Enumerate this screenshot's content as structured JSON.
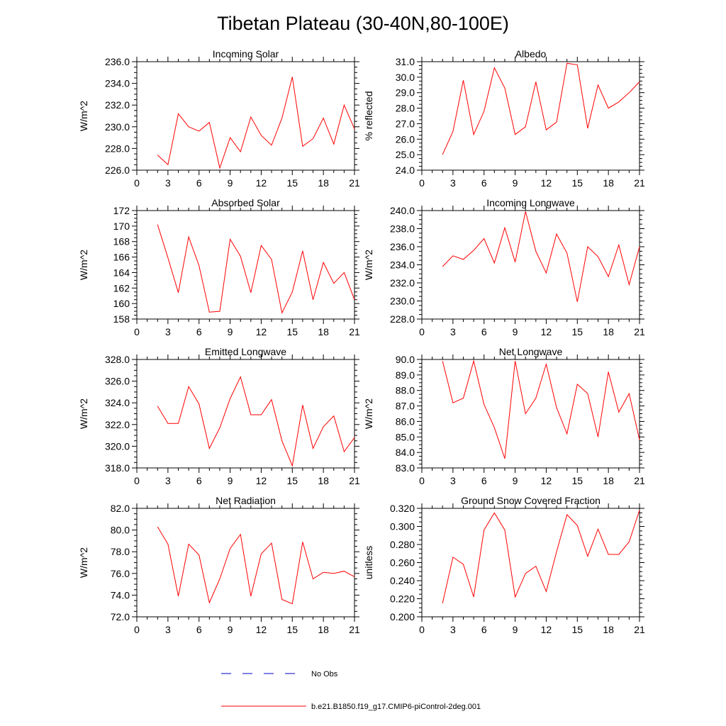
{
  "title": "Tibetan Plateau (30-40N,80-100E)",
  "colors": {
    "model_line": "#ff0000",
    "obs_line": "#0000cc",
    "axis": "#000000"
  },
  "legend": {
    "obs_label": "No Obs",
    "model_label": "b.e21.B1850.f19_g17.CMIP6-piControl-2deg.001"
  },
  "chart_data": [
    {
      "type": "line",
      "title": "Incoming Solar",
      "ylabel": "W/m^2",
      "xlim": [
        0,
        21
      ],
      "ylim": [
        226,
        236
      ],
      "xticks": [
        0,
        3,
        6,
        9,
        12,
        15,
        18,
        21
      ],
      "yticks": [
        "226.0",
        "228.0",
        "230.0",
        "232.0",
        "234.0",
        "236.0"
      ],
      "x": [
        2,
        3,
        4,
        5,
        6,
        7,
        8,
        9,
        10,
        11,
        12,
        13,
        14,
        15,
        16,
        17,
        18,
        19,
        20,
        21
      ],
      "series": [
        {
          "name": "b.e21.B1850.f19_g17.CMIP6-piControl-2deg.001",
          "values": [
            227.4,
            226.5,
            231.2,
            230.0,
            229.6,
            230.4,
            226.2,
            229.0,
            227.7,
            230.9,
            229.2,
            228.3,
            230.8,
            234.6,
            228.2,
            228.9,
            230.8,
            228.4,
            232.0,
            229.8
          ]
        }
      ]
    },
    {
      "type": "line",
      "title": "Albedo",
      "ylabel": "% reflected",
      "xlim": [
        0,
        21
      ],
      "ylim": [
        24,
        31
      ],
      "xticks": [
        0,
        3,
        6,
        9,
        12,
        15,
        18,
        21
      ],
      "yticks": [
        "24.0",
        "25.0",
        "26.0",
        "27.0",
        "28.0",
        "29.0",
        "30.0",
        "31.0"
      ],
      "x": [
        2,
        3,
        4,
        5,
        6,
        7,
        8,
        9,
        10,
        11,
        12,
        13,
        14,
        15,
        16,
        17,
        18,
        19,
        20,
        21
      ],
      "series": [
        {
          "name": "b.e21.B1850.f19_g17.CMIP6-piControl-2deg.001",
          "values": [
            25.0,
            26.5,
            29.8,
            26.3,
            27.8,
            30.6,
            29.3,
            26.3,
            26.8,
            29.7,
            26.6,
            27.1,
            30.9,
            30.8,
            26.7,
            29.5,
            28.0,
            28.4,
            29.0,
            29.7
          ]
        }
      ]
    },
    {
      "type": "line",
      "title": "Absorbed Solar",
      "ylabel": "W/m^2",
      "xlim": [
        0,
        21
      ],
      "ylim": [
        158,
        172
      ],
      "xticks": [
        0,
        3,
        6,
        9,
        12,
        15,
        18,
        21
      ],
      "yticks": [
        "158",
        "160",
        "162",
        "164",
        "166",
        "168",
        "170",
        "172"
      ],
      "x": [
        2,
        3,
        4,
        5,
        6,
        7,
        8,
        9,
        10,
        11,
        12,
        13,
        14,
        15,
        16,
        17,
        18,
        19,
        20,
        21
      ],
      "series": [
        {
          "name": "b.e21.B1850.f19_g17.CMIP6-piControl-2deg.001",
          "values": [
            170.2,
            165.9,
            161.4,
            168.6,
            164.9,
            158.9,
            159.0,
            168.3,
            166.1,
            161.4,
            167.5,
            165.7,
            158.8,
            161.5,
            166.8,
            160.5,
            165.3,
            162.6,
            164.0,
            160.5
          ]
        }
      ]
    },
    {
      "type": "line",
      "title": "Incoming Longwave",
      "ylabel": "W/m^2",
      "xlim": [
        0,
        21
      ],
      "ylim": [
        228,
        240
      ],
      "xticks": [
        0,
        3,
        6,
        9,
        12,
        15,
        18,
        21
      ],
      "yticks": [
        "228.0",
        "230.0",
        "232.0",
        "234.0",
        "236.0",
        "238.0",
        "240.0"
      ],
      "x": [
        2,
        3,
        4,
        5,
        6,
        7,
        8,
        9,
        10,
        11,
        12,
        13,
        14,
        15,
        16,
        17,
        18,
        19,
        20,
        21
      ],
      "series": [
        {
          "name": "b.e21.B1850.f19_g17.CMIP6-piControl-2deg.001",
          "values": [
            233.8,
            235.0,
            234.6,
            235.6,
            236.9,
            234.2,
            238.1,
            234.3,
            239.9,
            235.5,
            233.1,
            237.4,
            235.3,
            229.9,
            236.0,
            234.9,
            232.7,
            236.2,
            231.8,
            236.0
          ]
        }
      ]
    },
    {
      "type": "line",
      "title": "Emitted Longwave",
      "ylabel": "W/m^2",
      "xlim": [
        0,
        21
      ],
      "ylim": [
        318,
        328
      ],
      "xticks": [
        0,
        3,
        6,
        9,
        12,
        15,
        18,
        21
      ],
      "yticks": [
        "318.0",
        "320.0",
        "322.0",
        "324.0",
        "326.0",
        "328.0"
      ],
      "x": [
        2,
        3,
        4,
        5,
        6,
        7,
        8,
        9,
        10,
        11,
        12,
        13,
        14,
        15,
        16,
        17,
        18,
        19,
        20,
        21
      ],
      "series": [
        {
          "name": "b.e21.B1850.f19_g17.CMIP6-piControl-2deg.001",
          "values": [
            323.7,
            322.1,
            322.1,
            325.5,
            323.9,
            319.8,
            321.7,
            324.4,
            326.4,
            322.9,
            322.9,
            324.3,
            320.5,
            318.2,
            323.8,
            319.8,
            321.8,
            322.8,
            319.5,
            320.8
          ]
        }
      ]
    },
    {
      "type": "line",
      "title": "Net Longwave",
      "ylabel": "W/m^2",
      "xlim": [
        0,
        21
      ],
      "ylim": [
        83,
        90
      ],
      "xticks": [
        0,
        3,
        6,
        9,
        12,
        15,
        18,
        21
      ],
      "yticks": [
        "83.0",
        "84.0",
        "85.0",
        "86.0",
        "87.0",
        "88.0",
        "89.0",
        "90.0"
      ],
      "x": [
        2,
        3,
        4,
        5,
        6,
        7,
        8,
        9,
        10,
        11,
        12,
        13,
        14,
        15,
        16,
        17,
        18,
        19,
        20,
        21
      ],
      "series": [
        {
          "name": "b.e21.B1850.f19_g17.CMIP6-piControl-2deg.001",
          "values": [
            89.9,
            87.2,
            87.5,
            89.9,
            87.1,
            85.6,
            83.6,
            89.9,
            86.5,
            87.5,
            89.7,
            86.9,
            85.2,
            88.4,
            87.8,
            85.0,
            89.2,
            86.6,
            87.8,
            84.8
          ]
        }
      ]
    },
    {
      "type": "line",
      "title": "Net Radiation",
      "ylabel": "W/m^2",
      "xlim": [
        0,
        21
      ],
      "ylim": [
        72,
        82
      ],
      "xticks": [
        0,
        3,
        6,
        9,
        12,
        15,
        18,
        21
      ],
      "yticks": [
        "72.0",
        "74.0",
        "76.0",
        "78.0",
        "80.0",
        "82.0"
      ],
      "x": [
        2,
        3,
        4,
        5,
        6,
        7,
        8,
        9,
        10,
        11,
        12,
        13,
        14,
        15,
        16,
        17,
        18,
        19,
        20,
        21
      ],
      "series": [
        {
          "name": "b.e21.B1850.f19_g17.CMIP6-piControl-2deg.001",
          "values": [
            80.3,
            78.7,
            73.9,
            78.7,
            77.7,
            73.3,
            75.5,
            78.3,
            79.6,
            73.9,
            77.8,
            78.8,
            73.6,
            73.2,
            78.9,
            75.5,
            76.1,
            76.0,
            76.2,
            75.7
          ]
        }
      ]
    },
    {
      "type": "line",
      "title": "Ground Snow Covered Fraction",
      "ylabel": "unitless",
      "xlim": [
        0,
        21
      ],
      "ylim": [
        0.2,
        0.32
      ],
      "xticks": [
        0,
        3,
        6,
        9,
        12,
        15,
        18,
        21
      ],
      "yticks": [
        "0.200",
        "0.220",
        "0.240",
        "0.260",
        "0.280",
        "0.300",
        "0.320"
      ],
      "x": [
        2,
        3,
        4,
        5,
        6,
        7,
        8,
        9,
        10,
        11,
        12,
        13,
        14,
        15,
        16,
        17,
        18,
        19,
        20,
        21
      ],
      "series": [
        {
          "name": "b.e21.B1850.f19_g17.CMIP6-piControl-2deg.001",
          "values": [
            0.215,
            0.266,
            0.258,
            0.222,
            0.296,
            0.315,
            0.296,
            0.222,
            0.248,
            0.256,
            0.228,
            0.272,
            0.313,
            0.301,
            0.267,
            0.297,
            0.269,
            0.269,
            0.283,
            0.318
          ]
        }
      ]
    }
  ]
}
